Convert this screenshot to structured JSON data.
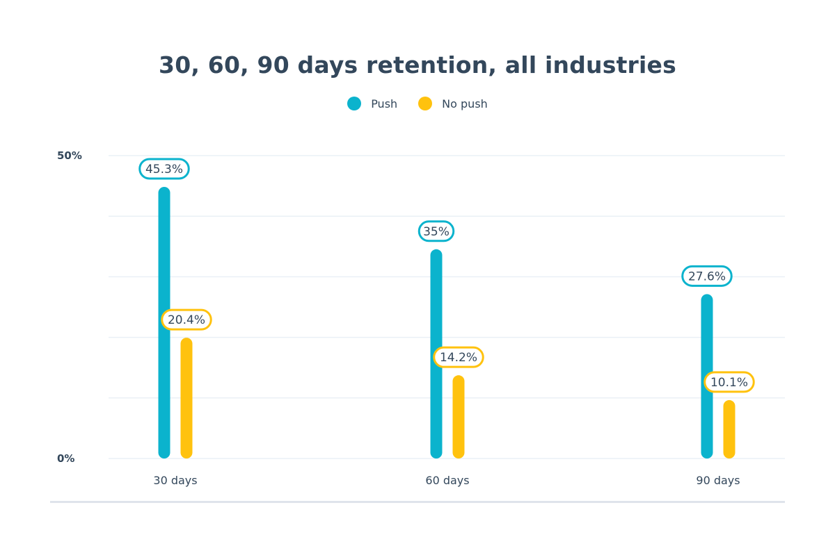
{
  "chart_data": {
    "type": "bar",
    "title": "30, 60, 90 days retention, all industries",
    "categories": [
      "30 days",
      "60 days",
      "90 days"
    ],
    "series": [
      {
        "name": "Push",
        "values": [
          45.3,
          35,
          27.6
        ],
        "labels": [
          "45.3%",
          "35%",
          "27.6%"
        ],
        "color": "#0bb3cd"
      },
      {
        "name": "No push",
        "values": [
          20.4,
          14.2,
          10.1
        ],
        "labels": [
          "20.4%",
          "14.2%",
          "10.1%"
        ],
        "color": "#ffc20e"
      }
    ],
    "ylim": [
      0,
      50
    ],
    "yticks": [
      {
        "value": 0,
        "label": "0%"
      },
      {
        "value": 50,
        "label": "50%"
      }
    ],
    "gridlines": [
      0,
      10,
      20,
      30,
      40,
      50
    ],
    "grid": true,
    "legend": "top-center",
    "xlabel": "",
    "ylabel": ""
  }
}
